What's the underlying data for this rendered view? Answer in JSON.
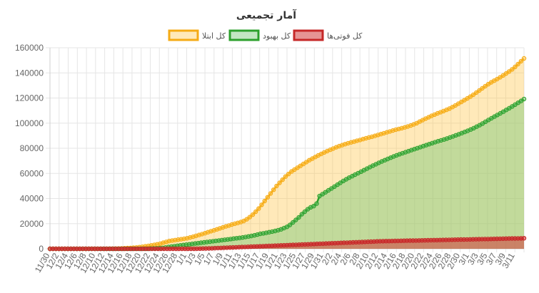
{
  "chart_data": {
    "type": "line",
    "title": "آمار تجمیعی",
    "xlabel": "",
    "ylabel": "",
    "ylim": [
      0,
      160000
    ],
    "y_ticks": [
      "0",
      "20000",
      "40000",
      "60000",
      "80000",
      "100000",
      "120000",
      "140000",
      "160000"
    ],
    "grid": true,
    "legend_position": "top-center",
    "x_tick_labels": [
      "11/30",
      "12/2",
      "12/4",
      "12/6",
      "12/8",
      "12/10",
      "12/12",
      "12/14",
      "12/16",
      "12/18",
      "12/20",
      "12/22",
      "12/24",
      "12/26",
      "12/28",
      "1/1",
      "1/3",
      "1/5",
      "1/7",
      "1/9",
      "1/11",
      "1/13",
      "1/15",
      "1/17",
      "1/19",
      "1/21",
      "1/23",
      "1/25",
      "1/27",
      "1/29",
      "1/31",
      "2/2",
      "2/4",
      "2/6",
      "2/8",
      "2/10",
      "2/12",
      "2/14",
      "2/16",
      "2/18",
      "2/20",
      "2/22",
      "2/24",
      "2/26",
      "2/28",
      "2/30",
      "3/1",
      "3/3",
      "3/5",
      "3/7",
      "3/9",
      "3/11"
    ],
    "series": [
      {
        "name": "کل ابتلا",
        "color": "#f5ab15",
        "fill": "rgba(255,200,80,0.40)",
        "values": [
          0,
          1,
          2,
          3,
          5,
          7,
          9,
          11,
          14,
          17,
          20,
          24,
          28,
          32,
          38,
          45,
          53,
          62,
          70,
          80,
          100,
          130,
          178,
          250,
          350,
          450,
          550,
          700,
          850,
          1000,
          1300,
          1600,
          2000,
          2300,
          2700,
          3100,
          3600,
          4100,
          4800,
          5500,
          6200,
          6500,
          6900,
          7300,
          7600,
          8000,
          8400,
          9000,
          9600,
          10300,
          11000,
          11700,
          12400,
          13200,
          14000,
          14700,
          15500,
          16300,
          17000,
          17800,
          18500,
          19300,
          20000,
          20600,
          21300,
          22100,
          23500,
          25200,
          27200,
          29500,
          32000,
          35000,
          38000,
          41000,
          44000,
          47000,
          50000,
          52500,
          55000,
          57500,
          59500,
          61500,
          63000,
          64500,
          66000,
          67500,
          69000,
          70500,
          71800,
          73100,
          74300,
          75500,
          76700,
          77800,
          78800,
          79800,
          80800,
          81700,
          82500,
          83300,
          84000,
          84700,
          85300,
          86000,
          86600,
          87300,
          88000,
          88600,
          89200,
          89900,
          90600,
          91300,
          92000,
          92700,
          93400,
          94100,
          94800,
          95400,
          96000,
          96600,
          97300,
          98100,
          99000,
          100000,
          101200,
          102400,
          103600,
          104700,
          105800,
          106800,
          107800,
          108700,
          109600,
          110600,
          111600,
          112800,
          114100,
          115500,
          116900,
          118300,
          119700,
          121100,
          122600,
          124300,
          126000,
          127700,
          129400,
          131000,
          132500,
          133800,
          135100,
          136500,
          138000,
          139500,
          141100,
          142800,
          144800,
          147000,
          149300,
          151500
        ]
      },
      {
        "name": "کل بهبود",
        "color": "#2ca02c",
        "fill": "rgba(120,200,120,0.45)",
        "values": [
          0,
          0,
          0,
          0,
          0,
          0,
          0,
          0,
          0,
          0,
          0,
          0,
          0,
          0,
          0,
          0,
          0,
          0,
          0,
          0,
          0,
          0,
          0,
          0,
          0,
          0,
          0,
          0,
          0,
          0,
          0,
          0,
          0,
          0,
          200,
          300,
          400,
          500,
          700,
          1000,
          1400,
          1800,
          2100,
          2400,
          2700,
          3000,
          3300,
          3600,
          3900,
          4200,
          4500,
          4800,
          5100,
          5400,
          5700,
          6000,
          6300,
          6600,
          6900,
          7200,
          7500,
          7800,
          8100,
          8400,
          8700,
          9000,
          9400,
          9800,
          10200,
          10700,
          11300,
          11900,
          12300,
          12700,
          13200,
          13700,
          14200,
          14800,
          15500,
          16500,
          17500,
          19000,
          21000,
          23000,
          25000,
          27500,
          29500,
          31500,
          33000,
          34000,
          36000,
          42000,
          43500,
          45000,
          46500,
          48000,
          49500,
          51000,
          52500,
          54000,
          55300,
          56600,
          57800,
          59000,
          60200,
          61400,
          62600,
          63800,
          65000,
          66200,
          67300,
          68400,
          69500,
          70500,
          71500,
          72500,
          73500,
          74400,
          75300,
          76100,
          76900,
          77700,
          78500,
          79300,
          80100,
          80900,
          81700,
          82500,
          83300,
          84100,
          84900,
          85600,
          86300,
          87000,
          87800,
          88600,
          89400,
          90300,
          91200,
          92100,
          93000,
          93900,
          94900,
          96000,
          97200,
          98400,
          99700,
          101100,
          102500,
          103900,
          105200,
          106500,
          107800,
          109100,
          110500,
          111900,
          113300,
          114700,
          116200,
          117700,
          119200
        ]
      },
      {
        "name": "کل فوتی‌ها",
        "color": "#c62828",
        "fill": "rgba(210,60,60,0.55)",
        "values": [
          0,
          0,
          0,
          0,
          0,
          0,
          0,
          0,
          0,
          0,
          0,
          0,
          0,
          0,
          0,
          0,
          0,
          0,
          0,
          0,
          0,
          0,
          0,
          0,
          0,
          0,
          0,
          0,
          0,
          0,
          0,
          0,
          0,
          0,
          0,
          0,
          0,
          0,
          0,
          0,
          0,
          0,
          0,
          0,
          0,
          0,
          0,
          0,
          0,
          50,
          100,
          150,
          200,
          300,
          400,
          500,
          600,
          700,
          800,
          900,
          1000,
          1100,
          1200,
          1300,
          1400,
          1500,
          1600,
          1700,
          1800,
          1900,
          2000,
          2100,
          2200,
          2300,
          2400,
          2500,
          2600,
          2700,
          2800,
          2900,
          3000,
          3100,
          3200,
          3300,
          3400,
          3500,
          3600,
          3700,
          3800,
          3900,
          4000,
          4100,
          4200,
          4300,
          4400,
          4500,
          4600,
          4700,
          4800,
          4900,
          5000,
          5100,
          5200,
          5300,
          5400,
          5500,
          5600,
          5700,
          5800,
          5900,
          6000,
          6050,
          6100,
          6150,
          6200,
          6250,
          6300,
          6350,
          6400,
          6450,
          6500,
          6550,
          6600,
          6650,
          6700,
          6750,
          6800,
          6850,
          6900,
          6950,
          7000,
          7050,
          7100,
          7150,
          7200,
          7250,
          7300,
          7350,
          7400,
          7450,
          7500,
          7550,
          7600,
          7650,
          7700,
          7750,
          7800,
          7850,
          7900,
          7950,
          8000,
          8050,
          8100,
          8150,
          8200,
          8250,
          8300,
          8350,
          8400
        ]
      }
    ]
  }
}
